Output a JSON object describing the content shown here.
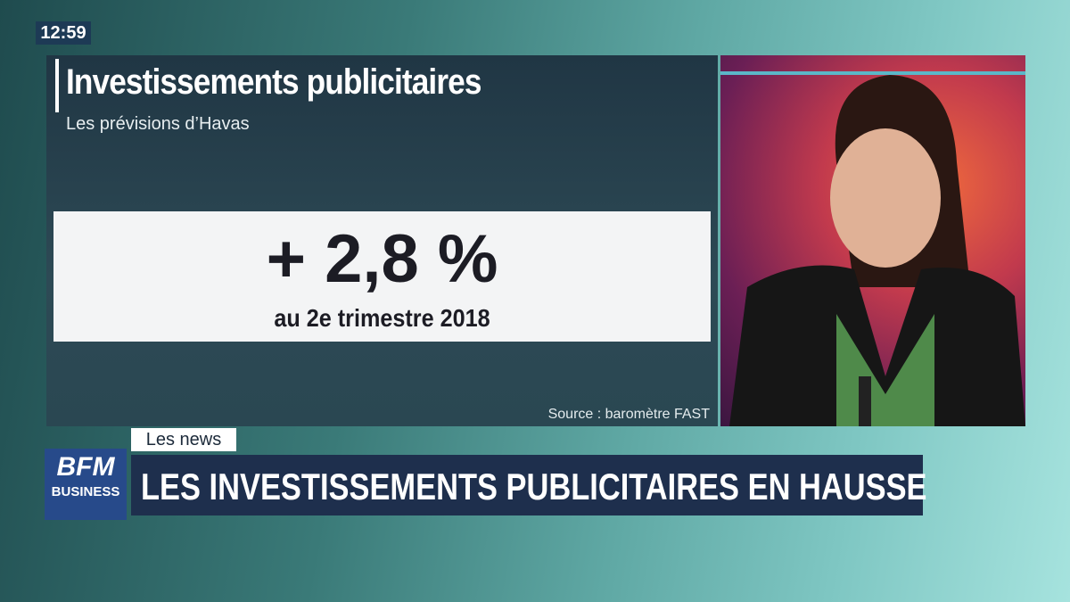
{
  "clock": "12:59",
  "graphic": {
    "title": "Investissements publicitaires",
    "subtitle": "Les prévisions d’Havas",
    "figure": "+ 2,8 %",
    "figure_caption": "au 2e trimestre 2018",
    "source": "Source : baromètre FAST"
  },
  "lower_third": {
    "tag": "Les news",
    "headline": "LES INVESTISSEMENTS PUBLICITAIRES EN HAUSSE"
  },
  "logo": {
    "brand": "BFM",
    "channel": "BUSINESS"
  }
}
